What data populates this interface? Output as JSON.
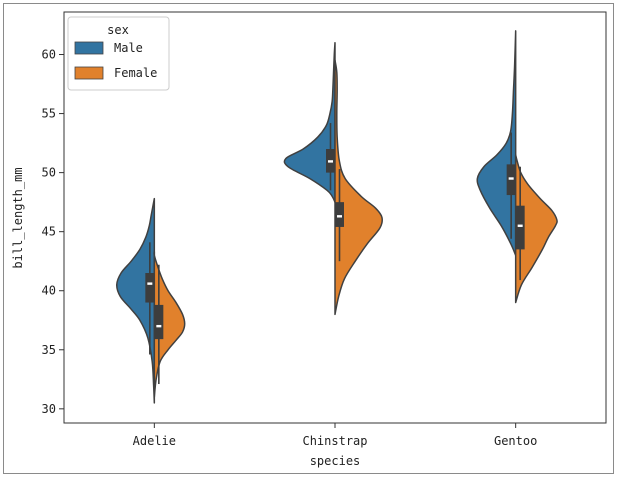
{
  "chart_data": {
    "type": "violin",
    "split": true,
    "xlabel": "species",
    "ylabel": "bill_length_mm",
    "categories": [
      "Adelie",
      "Chinstrap",
      "Gentoo"
    ],
    "ylim": [
      28.8,
      63.6
    ],
    "yticks": [
      30,
      35,
      40,
      45,
      50,
      55,
      60
    ],
    "legend": {
      "title": "sex",
      "position": "top-left",
      "entries": [
        {
          "label": "Male",
          "color": "#3274a1"
        },
        {
          "label": "Female",
          "color": "#e1812c"
        }
      ]
    },
    "series": [
      {
        "name": "Male",
        "color": "#3274a1",
        "side": "left",
        "violins": [
          {
            "category": "Adelie",
            "profile": [
              [
                30.5,
                0
              ],
              [
                32,
                0.01
              ],
              [
                34,
                0.03
              ],
              [
                36,
                0.09
              ],
              [
                37.5,
                0.2
              ],
              [
                38.5,
                0.33
              ],
              [
                39.5,
                0.47
              ],
              [
                40.5,
                0.52
              ],
              [
                41.5,
                0.46
              ],
              [
                42.5,
                0.32
              ],
              [
                43.5,
                0.2
              ],
              [
                44.5,
                0.12
              ],
              [
                45.5,
                0.07
              ],
              [
                46.5,
                0.04
              ],
              [
                47.8,
                0
              ]
            ],
            "box": {
              "q1": 39.0,
              "median": 40.6,
              "q3": 41.5,
              "whisker_low": 34.6,
              "whisker_high": 44.1
            }
          },
          {
            "category": "Chinstrap",
            "profile": [
              [
                47.5,
                0
              ],
              [
                48,
                0.04
              ],
              [
                48.5,
                0.11
              ],
              [
                49.5,
                0.35
              ],
              [
                50.5,
                0.65
              ],
              [
                51.2,
                0.68
              ],
              [
                52,
                0.44
              ],
              [
                53,
                0.24
              ],
              [
                54,
                0.12
              ],
              [
                55,
                0.07
              ],
              [
                56,
                0.04
              ],
              [
                57,
                0.03
              ],
              [
                58.5,
                0.02
              ],
              [
                60,
                0.01
              ],
              [
                61,
                0
              ]
            ],
            "box": {
              "q1": 50.0,
              "median": 50.95,
              "q3": 52.0,
              "whisker_low": 48.5,
              "whisker_high": 54.2
            }
          },
          {
            "category": "Gentoo",
            "profile": [
              [
                43,
                0
              ],
              [
                44,
                0.07
              ],
              [
                45.5,
                0.2
              ],
              [
                47,
                0.36
              ],
              [
                48.5,
                0.49
              ],
              [
                49.5,
                0.53
              ],
              [
                50.5,
                0.44
              ],
              [
                51.5,
                0.26
              ],
              [
                52.5,
                0.13
              ],
              [
                53.5,
                0.07
              ],
              [
                55,
                0.045
              ],
              [
                57,
                0.03
              ],
              [
                59,
                0.015
              ],
              [
                62,
                0
              ]
            ],
            "box": {
              "q1": 48.1,
              "median": 49.5,
              "q3": 50.7,
              "whisker_low": 44.4,
              "whisker_high": 53.4
            }
          }
        ]
      },
      {
        "name": "Female",
        "color": "#e1812c",
        "side": "right",
        "violins": [
          {
            "category": "Adelie",
            "profile": [
              [
                31,
                0
              ],
              [
                32.5,
                0.025
              ],
              [
                34,
                0.08
              ],
              [
                35,
                0.19
              ],
              [
                35.8,
                0.3
              ],
              [
                36.5,
                0.39
              ],
              [
                37.2,
                0.42
              ],
              [
                38,
                0.39
              ],
              [
                39,
                0.3
              ],
              [
                40,
                0.19
              ],
              [
                41,
                0.11
              ],
              [
                42,
                0.05
              ],
              [
                43,
                0
              ],
              [
                43.3,
                0
              ]
            ],
            "box": {
              "q1": 35.9,
              "median": 37.0,
              "q3": 38.8,
              "whisker_low": 32.1,
              "whisker_high": 42.2
            }
          },
          {
            "category": "Chinstrap",
            "profile": [
              [
                38,
                0
              ],
              [
                39.5,
                0.05
              ],
              [
                41,
                0.13
              ],
              [
                42.5,
                0.28
              ],
              [
                44,
                0.45
              ],
              [
                45.3,
                0.62
              ],
              [
                46.2,
                0.65
              ],
              [
                47,
                0.56
              ],
              [
                48,
                0.36
              ],
              [
                49.5,
                0.14
              ],
              [
                51,
                0.06
              ],
              [
                53,
                0.03
              ],
              [
                55,
                0.025
              ],
              [
                57,
                0.03
              ],
              [
                58.5,
                0.025
              ],
              [
                59.5,
                0
              ]
            ],
            "box": {
              "q1": 45.4,
              "median": 46.3,
              "q3": 47.5,
              "whisker_low": 42.5,
              "whisker_high": 50.3
            }
          },
          {
            "category": "Gentoo",
            "profile": [
              [
                39,
                0
              ],
              [
                40.5,
                0.08
              ],
              [
                42,
                0.23
              ],
              [
                43.5,
                0.37
              ],
              [
                44.5,
                0.45
              ],
              [
                45.5,
                0.55
              ],
              [
                46,
                0.57
              ],
              [
                46.8,
                0.5
              ],
              [
                47.8,
                0.34
              ],
              [
                49,
                0.17
              ],
              [
                50,
                0.07
              ],
              [
                51,
                0.02
              ],
              [
                51.5,
                0
              ]
            ],
            "box": {
              "q1": 43.5,
              "median": 45.5,
              "q3": 47.2,
              "whisker_low": 40.9,
              "whisker_high": 50.5
            }
          }
        ]
      }
    ]
  }
}
